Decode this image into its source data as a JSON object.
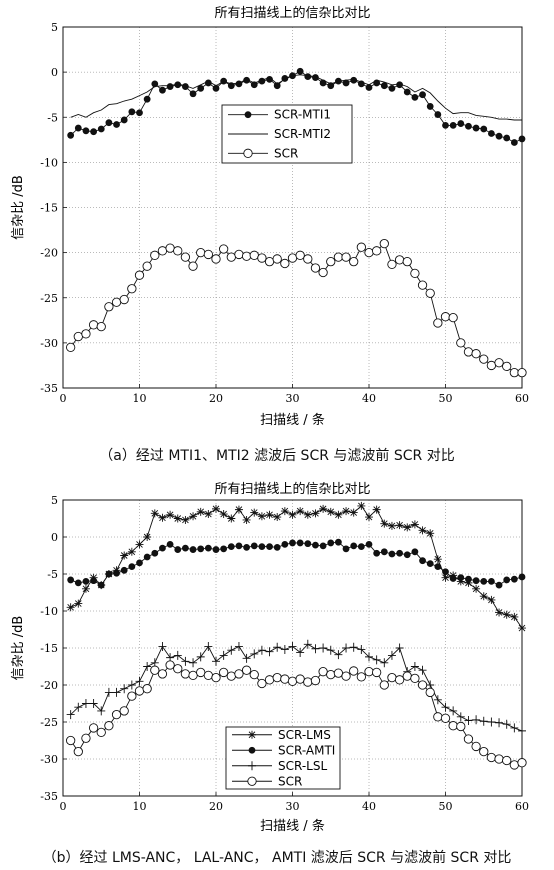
{
  "charts": [
    {
      "title": "所有扫描线上的信杂比对比",
      "xlabel": "扫描线 / 条",
      "ylabel": "信杂比 /dB",
      "caption": "（a）经过 MTI1、MTI2 滤波后 SCR 与滤波前 SCR 对比"
    },
    {
      "title": "所有扫描线上的信杂比对比",
      "xlabel": "扫描线 / 条",
      "ylabel": "信杂比 /dB",
      "caption": "（b）经过 LMS-ANC， LAL-ANC， AMTI 滤波后 SCR 与滤波前 SCR 对比"
    }
  ],
  "chart_data": [
    {
      "type": "line",
      "title": "所有扫描线上的信杂比对比",
      "xlabel": "扫描线 / 条",
      "ylabel": "信杂比 /dB",
      "xlim": [
        0,
        60
      ],
      "ylim": [
        -35,
        5
      ],
      "xticks": [
        0,
        10,
        20,
        30,
        40,
        50,
        60
      ],
      "yticks": [
        5,
        0,
        -5,
        -10,
        -15,
        -20,
        -25,
        -30,
        -35
      ],
      "grid": true,
      "legend_position": "upper-middle",
      "x": [
        1,
        2,
        3,
        4,
        5,
        6,
        7,
        8,
        9,
        10,
        11,
        12,
        13,
        14,
        15,
        16,
        17,
        18,
        19,
        20,
        21,
        22,
        23,
        24,
        25,
        26,
        27,
        28,
        29,
        30,
        31,
        32,
        33,
        34,
        35,
        36,
        37,
        38,
        39,
        40,
        41,
        42,
        43,
        44,
        45,
        46,
        47,
        48,
        49,
        50,
        51,
        52,
        53,
        54,
        55,
        56,
        57,
        58,
        59,
        60
      ],
      "series": [
        {
          "name": "SCR-MTI1",
          "marker": "filled-circle",
          "values": [
            -7.0,
            -6.2,
            -6.5,
            -6.6,
            -6.3,
            -5.6,
            -5.8,
            -5.3,
            -4.4,
            -4.5,
            -3.0,
            -1.3,
            -2.0,
            -1.6,
            -1.4,
            -1.6,
            -2.4,
            -1.8,
            -1.2,
            -1.8,
            -1.0,
            -1.5,
            -1.3,
            -0.9,
            -1.4,
            -1.0,
            -0.8,
            -1.5,
            -0.7,
            -0.4,
            0.1,
            -0.5,
            -0.6,
            -1.2,
            -1.5,
            -1.0,
            -1.2,
            -0.9,
            -1.3,
            -1.7,
            -1.2,
            -1.5,
            -1.8,
            -1.4,
            -2.2,
            -2.8,
            -2.5,
            -3.8,
            -4.7,
            -5.9,
            -5.9,
            -5.7,
            -6.0,
            -6.2,
            -6.3,
            -6.8,
            -7.1,
            -7.3,
            -7.8,
            -7.4
          ]
        },
        {
          "name": "SCR-MTI2",
          "marker": "none",
          "values": [
            -5.0,
            -4.7,
            -5.0,
            -4.5,
            -4.2,
            -3.6,
            -3.5,
            -3.2,
            -3.0,
            -2.6,
            -2.2,
            -1.6,
            -1.5,
            -1.5,
            -1.3,
            -1.5,
            -1.8,
            -1.4,
            -1.0,
            -1.5,
            -1.0,
            -1.3,
            -1.2,
            -0.8,
            -1.2,
            -0.9,
            -0.6,
            -1.3,
            -0.8,
            -0.4,
            -0.3,
            -0.4,
            -0.5,
            -0.9,
            -1.3,
            -1.0,
            -0.9,
            -0.8,
            -1.1,
            -1.4,
            -0.9,
            -1.1,
            -1.4,
            -1.3,
            -1.6,
            -2.2,
            -1.8,
            -2.3,
            -3.2,
            -4.0,
            -4.6,
            -4.5,
            -4.5,
            -4.8,
            -4.9,
            -5.0,
            -5.2,
            -5.2,
            -5.3,
            -5.3
          ]
        },
        {
          "name": "SCR",
          "marker": "open-circle",
          "values": [
            -30.5,
            -29.3,
            -29.0,
            -28.0,
            -28.2,
            -26.0,
            -25.5,
            -25.2,
            -24.0,
            -22.5,
            -21.5,
            -20.3,
            -19.8,
            -19.5,
            -19.8,
            -20.5,
            -21.5,
            -20.0,
            -20.2,
            -20.7,
            -19.6,
            -20.5,
            -20.2,
            -20.4,
            -20.3,
            -20.6,
            -21.0,
            -20.7,
            -21.2,
            -20.6,
            -20.3,
            -20.7,
            -21.7,
            -22.2,
            -21.0,
            -20.5,
            -20.5,
            -21.0,
            -19.4,
            -20.0,
            -19.8,
            -19.0,
            -21.3,
            -20.8,
            -21.0,
            -22.3,
            -23.6,
            -24.5,
            -27.8,
            -27.1,
            -27.2,
            -30.0,
            -31.0,
            -31.2,
            -31.8,
            -32.5,
            -32.2,
            -32.6,
            -33.3,
            -33.3
          ]
        }
      ]
    },
    {
      "type": "line",
      "title": "所有扫描线上的信杂比对比",
      "xlabel": "扫描线 / 条",
      "ylabel": "信杂比 /dB",
      "xlim": [
        0,
        60
      ],
      "ylim": [
        -35,
        5
      ],
      "xticks": [
        0,
        10,
        20,
        30,
        40,
        50,
        60
      ],
      "yticks": [
        5,
        0,
        -5,
        -10,
        -15,
        -20,
        -25,
        -30,
        -35
      ],
      "grid": true,
      "legend_position": "bottom-middle",
      "x": [
        1,
        2,
        3,
        4,
        5,
        6,
        7,
        8,
        9,
        10,
        11,
        12,
        13,
        14,
        15,
        16,
        17,
        18,
        19,
        20,
        21,
        22,
        23,
        24,
        25,
        26,
        27,
        28,
        29,
        30,
        31,
        32,
        33,
        34,
        35,
        36,
        37,
        38,
        39,
        40,
        41,
        42,
        43,
        44,
        45,
        46,
        47,
        48,
        49,
        50,
        51,
        52,
        53,
        54,
        55,
        56,
        57,
        58,
        59,
        60
      ],
      "series": [
        {
          "name": "SCR-LMS",
          "marker": "asterisk",
          "values": [
            -9.5,
            -9.0,
            -7.0,
            -5.5,
            -6.5,
            -5.0,
            -4.5,
            -2.5,
            -2.0,
            -1.0,
            0.0,
            3.2,
            2.6,
            3.0,
            2.5,
            2.3,
            2.8,
            3.4,
            3.1,
            3.8,
            3.1,
            2.5,
            3.7,
            2.3,
            3.3,
            2.8,
            3.0,
            2.7,
            3.5,
            3.0,
            3.5,
            3.0,
            3.2,
            3.8,
            3.4,
            3.0,
            3.5,
            3.3,
            4.2,
            2.7,
            3.7,
            1.8,
            1.5,
            1.6,
            1.3,
            1.7,
            0.9,
            0.5,
            -3.0,
            -5.5,
            -5.2,
            -6.0,
            -6.2,
            -7.0,
            -8.0,
            -8.5,
            -10.2,
            -10.5,
            -10.8,
            -12.3
          ]
        },
        {
          "name": "SCR-AMTI",
          "marker": "filled-circle",
          "values": [
            -5.8,
            -6.2,
            -6.0,
            -5.9,
            -6.5,
            -5.0,
            -4.9,
            -4.5,
            -4.0,
            -3.5,
            -2.7,
            -2.2,
            -1.5,
            -1.0,
            -1.7,
            -1.5,
            -1.7,
            -1.6,
            -1.5,
            -1.7,
            -1.6,
            -1.3,
            -1.2,
            -1.4,
            -1.2,
            -1.3,
            -1.3,
            -1.4,
            -1.0,
            -0.8,
            -0.8,
            -0.9,
            -1.1,
            -1.2,
            -0.8,
            -0.7,
            -1.6,
            -1.2,
            -1.3,
            -1.0,
            -2.2,
            -2.0,
            -2.3,
            -2.2,
            -2.4,
            -2.0,
            -3.2,
            -3.6,
            -4.0,
            -4.7,
            -5.6,
            -5.5,
            -5.7,
            -5.9,
            -6.0,
            -6.0,
            -6.5,
            -5.8,
            -5.7,
            -5.4
          ]
        },
        {
          "name": "SCR-LSL",
          "marker": "plus",
          "values": [
            -24.0,
            -23.0,
            -22.5,
            -22.5,
            -23.5,
            -21.0,
            -21.0,
            -20.5,
            -20.0,
            -19.5,
            -17.5,
            -17.0,
            -14.8,
            -16.3,
            -16.0,
            -16.8,
            -17.0,
            -16.2,
            -14.8,
            -16.8,
            -16.0,
            -15.3,
            -14.8,
            -16.4,
            -15.8,
            -15.3,
            -15.5,
            -14.9,
            -15.2,
            -14.8,
            -15.6,
            -14.5,
            -15.1,
            -15.0,
            -15.3,
            -15.9,
            -15.0,
            -14.9,
            -15.2,
            -16.2,
            -16.6,
            -17.0,
            -16.0,
            -15.0,
            -18.2,
            -17.5,
            -18.0,
            -20.0,
            -22.0,
            -23.0,
            -23.5,
            -24.3,
            -24.8,
            -24.7,
            -24.9,
            -25.0,
            -25.1,
            -25.3,
            -25.8,
            -26.2
          ]
        },
        {
          "name": "SCR",
          "marker": "open-circle",
          "values": [
            -27.5,
            -29.0,
            -27.2,
            -25.8,
            -26.4,
            -25.5,
            -24.0,
            -23.5,
            -21.5,
            -20.8,
            -20.5,
            -18.0,
            -18.5,
            -17.3,
            -17.8,
            -18.5,
            -18.7,
            -18.3,
            -18.7,
            -19.0,
            -18.3,
            -18.8,
            -18.5,
            -18.0,
            -18.6,
            -19.8,
            -19.3,
            -19.0,
            -19.2,
            -19.5,
            -19.2,
            -19.6,
            -19.4,
            -18.2,
            -18.6,
            -18.4,
            -18.8,
            -18.1,
            -18.9,
            -18.2,
            -18.3,
            -20.0,
            -19.0,
            -19.3,
            -18.8,
            -19.1,
            -20.0,
            -21.0,
            -24.3,
            -24.5,
            -25.5,
            -25.6,
            -27.3,
            -28.3,
            -29.0,
            -29.8,
            -30.0,
            -30.2,
            -30.8,
            -30.5
          ]
        }
      ]
    }
  ]
}
